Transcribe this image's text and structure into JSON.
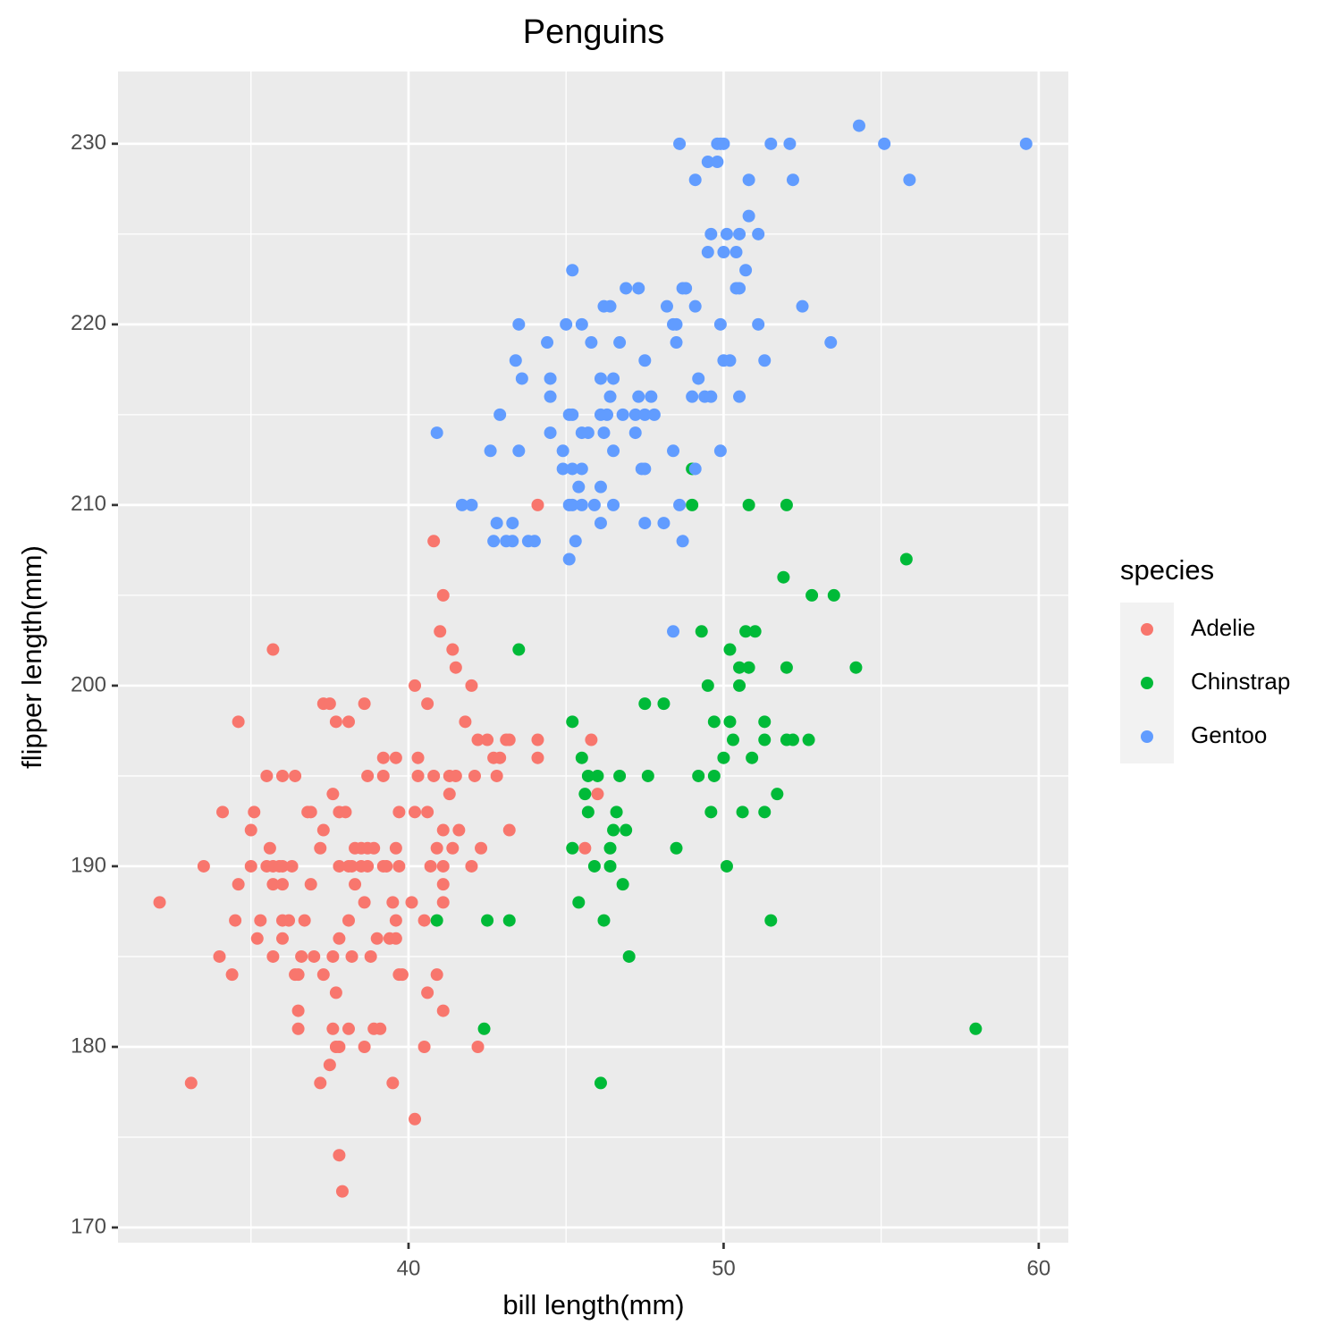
{
  "chart_data": {
    "type": "scatter",
    "title": "Penguins",
    "x_label": "bill length(mm)",
    "y_label": "flipper length(mm)",
    "legend_title": "species",
    "legend": "right",
    "grid": true,
    "xlim": [
      30.78,
      60.94
    ],
    "ylim": [
      169.16,
      234.0
    ],
    "xticks": [
      40,
      50,
      60
    ],
    "yticks": [
      170,
      180,
      190,
      200,
      210,
      220,
      230
    ],
    "x_minor_ticks": [
      35,
      45,
      55
    ],
    "y_minor_ticks": [
      175,
      185,
      195,
      205,
      215,
      225
    ],
    "series": [
      {
        "name": "Adelie",
        "color": "#F8766D",
        "x": [
          44.1,
          40.8,
          41.1,
          41.0,
          35.7,
          41.4,
          41.5,
          40.2,
          42.0,
          37.3,
          37.5,
          38.6,
          40.6,
          34.6,
          37.7,
          38.1,
          41.8,
          42.2,
          42.5,
          43.1,
          43.2,
          44.1,
          45.8,
          39.2,
          39.6,
          40.3,
          42.7,
          42.9,
          44.1,
          35.5,
          36.0,
          36.4,
          38.7,
          39.2,
          40.3,
          40.8,
          41.3,
          41.5,
          42.1,
          42.8,
          37.6,
          41.3,
          46.0,
          34.1,
          35.1,
          36.8,
          36.9,
          37.8,
          38.0,
          39.7,
          40.2,
          40.6,
          35.0,
          37.3,
          41.1,
          41.6,
          43.2,
          35.6,
          37.2,
          38.3,
          38.5,
          38.7,
          38.9,
          39.6,
          40.9,
          41.4,
          42.3,
          45.6,
          33.5,
          35.0,
          35.5,
          35.7,
          35.9,
          36.0,
          36.3,
          37.8,
          38.1,
          38.2,
          38.5,
          38.7,
          39.2,
          39.3,
          39.7,
          40.7,
          41.1,
          42.0,
          34.6,
          35.7,
          36.0,
          36.9,
          38.3,
          41.1,
          32.1,
          38.6,
          39.5,
          40.1,
          41.1,
          34.5,
          35.3,
          36.0,
          36.2,
          36.7,
          38.1,
          39.6,
          40.5,
          35.2,
          36.0,
          37.8,
          39.0,
          39.4,
          39.6,
          34.0,
          35.7,
          36.6,
          37.0,
          37.6,
          38.2,
          38.8,
          34.4,
          36.4,
          36.5,
          37.3,
          39.7,
          39.8,
          40.9,
          37.7,
          40.6,
          36.5,
          41.1,
          36.5,
          37.6,
          38.1,
          38.9,
          39.1,
          37.7,
          37.8,
          38.6,
          40.5,
          42.2,
          37.5,
          33.1,
          37.2,
          39.5,
          40.2,
          37.8,
          37.9
        ],
        "values": [
          210,
          208,
          205,
          203,
          202,
          202,
          201,
          200,
          200,
          199,
          199,
          199,
          199,
          198,
          198,
          198,
          198,
          197,
          197,
          197,
          197,
          197,
          197,
          196,
          196,
          196,
          196,
          196,
          196,
          195,
          195,
          195,
          195,
          195,
          195,
          195,
          195,
          195,
          195,
          195,
          194,
          194,
          194,
          193,
          193,
          193,
          193,
          193,
          193,
          193,
          193,
          193,
          192,
          192,
          192,
          192,
          192,
          191,
          191,
          191,
          191,
          191,
          191,
          191,
          191,
          191,
          191,
          191,
          190,
          190,
          190,
          190,
          190,
          190,
          190,
          190,
          190,
          190,
          190,
          190,
          190,
          190,
          190,
          190,
          190,
          190,
          189,
          189,
          189,
          189,
          189,
          189,
          188,
          188,
          188,
          188,
          188,
          187,
          187,
          187,
          187,
          187,
          187,
          187,
          187,
          186,
          186,
          186,
          186,
          186,
          186,
          185,
          185,
          185,
          185,
          185,
          185,
          185,
          184,
          184,
          184,
          184,
          184,
          184,
          184,
          183,
          183,
          182,
          182,
          181,
          181,
          181,
          181,
          181,
          180,
          180,
          180,
          180,
          180,
          179,
          178,
          178,
          178,
          176,
          174,
          172
        ]
      },
      {
        "name": "Chinstrap",
        "color": "#00BA38",
        "x": [
          49.0,
          49.0,
          50.8,
          52.0,
          55.8,
          51.9,
          52.8,
          53.5,
          49.3,
          50.7,
          51.0,
          43.5,
          50.2,
          50.5,
          50.8,
          52.0,
          54.2,
          49.5,
          50.5,
          47.5,
          48.1,
          45.2,
          49.7,
          50.2,
          51.3,
          50.3,
          51.3,
          52.0,
          52.2,
          52.7,
          45.5,
          50.0,
          50.9,
          45.7,
          46.0,
          46.7,
          47.6,
          49.2,
          49.7,
          45.6,
          51.7,
          45.7,
          46.6,
          49.6,
          50.6,
          51.3,
          46.5,
          46.9,
          45.2,
          46.4,
          48.5,
          45.9,
          46.4,
          50.1,
          46.8,
          45.4,
          40.9,
          42.5,
          43.2,
          46.2,
          51.5,
          47.0,
          42.4,
          58.0,
          46.1
        ],
        "values": [
          212,
          210,
          210,
          210,
          207,
          206,
          205,
          205,
          203,
          203,
          203,
          202,
          202,
          201,
          201,
          201,
          201,
          200,
          200,
          199,
          199,
          198,
          198,
          198,
          198,
          197,
          197,
          197,
          197,
          197,
          196,
          196,
          196,
          195,
          195,
          195,
          195,
          195,
          195,
          194,
          194,
          193,
          193,
          193,
          193,
          193,
          192,
          192,
          191,
          191,
          191,
          190,
          190,
          190,
          189,
          188,
          187,
          187,
          187,
          187,
          187,
          185,
          181,
          181,
          178
        ]
      },
      {
        "name": "Gentoo",
        "color": "#619CFF",
        "x": [
          54.3,
          48.6,
          49.8,
          49.9,
          50.0,
          51.5,
          52.1,
          55.1,
          59.6,
          49.5,
          49.8,
          49.1,
          50.8,
          52.2,
          55.9,
          50.8,
          49.6,
          50.1,
          50.5,
          51.1,
          49.5,
          50.0,
          50.4,
          45.2,
          50.7,
          46.9,
          47.3,
          48.7,
          48.8,
          50.4,
          50.5,
          46.2,
          46.4,
          48.2,
          49.1,
          52.5,
          43.5,
          45.0,
          45.5,
          48.4,
          48.5,
          49.9,
          51.1,
          44.4,
          45.8,
          46.7,
          48.5,
          53.4,
          43.4,
          47.5,
          50.0,
          50.2,
          51.3,
          43.6,
          44.5,
          46.1,
          46.5,
          49.2,
          44.5,
          46.4,
          47.3,
          47.7,
          49.0,
          49.4,
          49.6,
          50.5,
          42.9,
          45.1,
          45.2,
          46.1,
          46.3,
          46.8,
          47.2,
          47.5,
          47.8,
          40.9,
          44.5,
          45.5,
          45.7,
          46.2,
          47.2,
          42.6,
          43.5,
          44.9,
          46.5,
          48.4,
          49.9,
          44.9,
          45.2,
          45.5,
          47.4,
          47.5,
          49.1,
          45.4,
          46.1,
          41.7,
          42.0,
          45.1,
          45.2,
          45.5,
          45.9,
          46.5,
          48.6,
          42.8,
          43.3,
          46.1,
          47.5,
          48.1,
          42.7,
          43.1,
          43.3,
          43.8,
          44.0,
          45.3,
          48.7,
          45.1,
          48.4
        ],
        "values": [
          231,
          230,
          230,
          230,
          230,
          230,
          230,
          230,
          230,
          229,
          229,
          228,
          228,
          228,
          228,
          226,
          225,
          225,
          225,
          225,
          224,
          224,
          224,
          223,
          223,
          222,
          222,
          222,
          222,
          222,
          222,
          221,
          221,
          221,
          221,
          221,
          220,
          220,
          220,
          220,
          220,
          220,
          220,
          219,
          219,
          219,
          219,
          219,
          218,
          218,
          218,
          218,
          218,
          217,
          217,
          217,
          217,
          217,
          216,
          216,
          216,
          216,
          216,
          216,
          216,
          216,
          215,
          215,
          215,
          215,
          215,
          215,
          215,
          215,
          215,
          214,
          214,
          214,
          214,
          214,
          214,
          213,
          213,
          213,
          213,
          213,
          213,
          212,
          212,
          212,
          212,
          212,
          212,
          211,
          211,
          210,
          210,
          210,
          210,
          210,
          210,
          210,
          210,
          209,
          209,
          209,
          209,
          209,
          208,
          208,
          208,
          208,
          208,
          208,
          208,
          207,
          203
        ]
      }
    ]
  }
}
